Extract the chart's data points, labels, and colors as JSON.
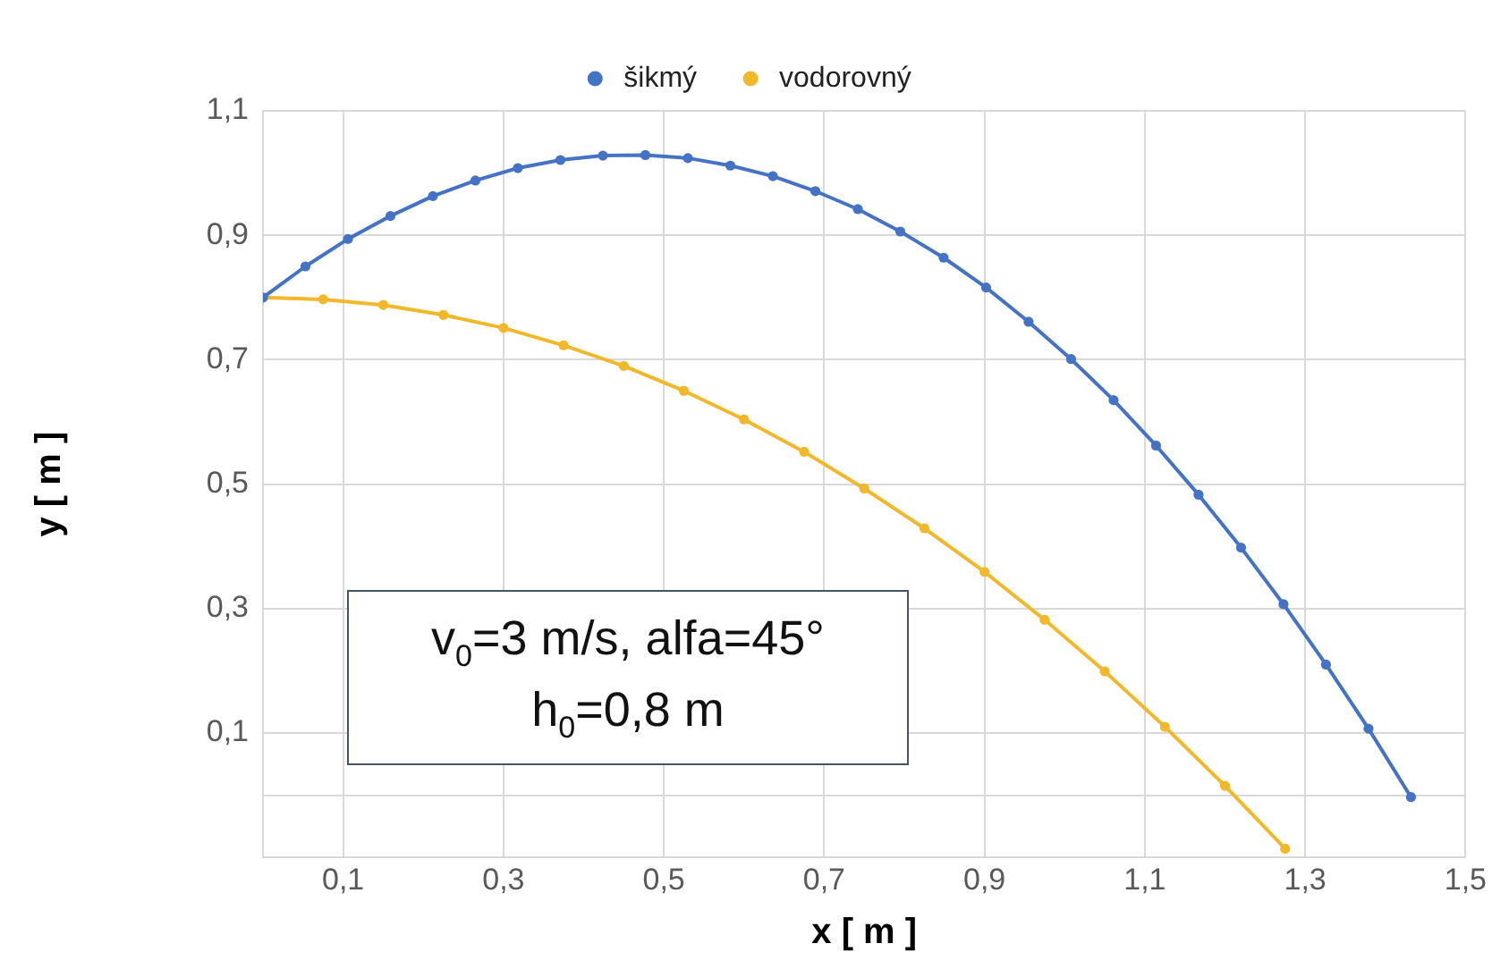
{
  "chart_data": {
    "type": "line",
    "xlabel": "x [ m ]",
    "ylabel": "y [ m ]",
    "xlim": [
      0,
      1.5
    ],
    "xticks": [
      {
        "value": 0,
        "label": null
      },
      {
        "value": 0.1,
        "label": "0,1"
      },
      {
        "value": 0.3,
        "label": "0,3"
      },
      {
        "value": 0.5,
        "label": "0,5"
      },
      {
        "value": 0.7,
        "label": "0,7"
      },
      {
        "value": 0.9,
        "label": "0,9"
      },
      {
        "value": 1.1,
        "label": "1,1"
      },
      {
        "value": 1.3,
        "label": "1,3"
      },
      {
        "value": 1.5,
        "label": "1,5"
      }
    ],
    "ylim": [
      -0.1,
      1.1
    ],
    "yticks": [
      {
        "value": -0.1,
        "label": null
      },
      {
        "value": 0,
        "label": null
      },
      {
        "value": 0.1,
        "label": "0,1"
      },
      {
        "value": 0.3,
        "label": "0,3"
      },
      {
        "value": 0.5,
        "label": "0,5"
      },
      {
        "value": 0.7,
        "label": "0,7"
      },
      {
        "value": 0.9,
        "label": "0,9"
      },
      {
        "value": 1.1,
        "label": "1,1"
      }
    ],
    "grid": true,
    "legend": "top",
    "marker": "circle",
    "line_style": "solid",
    "annotations": [
      "v$_{0}$=3 m/s, alfa=45°",
      "h$_{0}$=0,8 m"
    ],
    "series": [
      {
        "name": "vodorovný",
        "color": "#f0b82a",
        "x": [
          0,
          0.075,
          0.15,
          0.225,
          0.3,
          0.375,
          0.45,
          0.525,
          0.6,
          0.675,
          0.75,
          0.825,
          0.9,
          0.975,
          1.05,
          1.125,
          1.2,
          1.275
        ],
        "values": [
          0.8,
          0.797,
          0.788,
          0.772,
          0.751,
          0.723,
          0.69,
          0.65,
          0.604,
          0.552,
          0.493,
          0.429,
          0.359,
          0.282,
          0.199,
          0.11,
          0.015,
          -0.086
        ]
      },
      {
        "name": "šikmý",
        "color": "#4472c4",
        "x": [
          0,
          0.053,
          0.106,
          0.159,
          0.212,
          0.265,
          0.318,
          0.371,
          0.424,
          0.477,
          0.53,
          0.583,
          0.636,
          0.689,
          0.742,
          0.795,
          0.849,
          0.902,
          0.955,
          1.008,
          1.061,
          1.114,
          1.167,
          1.22,
          1.273,
          1.326,
          1.379,
          1.432
        ],
        "values": [
          0.8,
          0.85,
          0.894,
          0.931,
          0.963,
          0.988,
          1.008,
          1.021,
          1.028,
          1.029,
          1.024,
          1.012,
          0.995,
          0.971,
          0.942,
          0.906,
          0.864,
          0.816,
          0.761,
          0.701,
          0.635,
          0.562,
          0.483,
          0.398,
          0.307,
          0.21,
          0.107,
          -0.003
        ]
      }
    ]
  }
}
